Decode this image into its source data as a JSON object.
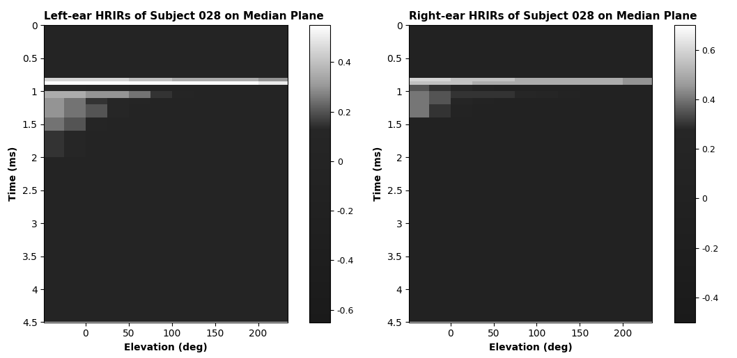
{
  "chart_data": [
    {
      "type": "heatmap",
      "title": "Left-ear HRIRs of Subject 028 on Median Plane",
      "x_label": "Elevation (deg)",
      "y_label": "Time (ms)",
      "xlim": [
        -48,
        234
      ],
      "ylim": [
        4.5,
        0
      ],
      "xticks": [
        0,
        50,
        100,
        150,
        200
      ],
      "yticks": [
        0,
        0.5,
        1,
        1.5,
        2,
        2.5,
        3,
        3.5,
        4,
        4.5
      ],
      "x_edges": [
        -48,
        -25,
        0,
        25,
        50,
        75,
        100,
        125,
        150,
        175,
        200,
        234
      ],
      "y_edges": [
        0,
        0.8,
        0.85,
        0.9,
        1.0,
        1.1,
        1.2,
        1.4,
        1.6,
        2.0,
        4.5
      ],
      "cells": [
        [
          0,
          0,
          0,
          0,
          0,
          0,
          0,
          0,
          0,
          0,
          0
        ],
        [
          0.45,
          0.45,
          0.45,
          0.45,
          0.4,
          0.4,
          0.35,
          0.35,
          0.35,
          0.35,
          0.3
        ],
        [
          0.55,
          0.55,
          0.55,
          0.55,
          0.55,
          0.55,
          0.55,
          0.55,
          0.55,
          0.55,
          0.5
        ],
        [
          0.1,
          0.1,
          0.05,
          0.05,
          0,
          0,
          0,
          0,
          0,
          0,
          0
        ],
        [
          0.35,
          0.35,
          0.3,
          0.3,
          0.25,
          0.15,
          0.05,
          0,
          0,
          0,
          0
        ],
        [
          0.3,
          0.25,
          0.15,
          0.1,
          0.05,
          0,
          0,
          0,
          0,
          0,
          0
        ],
        [
          0.3,
          0.25,
          0.2,
          0.1,
          0,
          0,
          0,
          0,
          0,
          0,
          0
        ],
        [
          0.25,
          0.2,
          0.05,
          0,
          0,
          0,
          0,
          0,
          0,
          0,
          0
        ],
        [
          0.15,
          0.1,
          0,
          0,
          0,
          0,
          0,
          0,
          0,
          0,
          0
        ],
        [
          0,
          0,
          0,
          0,
          0,
          0,
          0,
          0,
          0,
          0,
          0
        ]
      ],
      "colorbar_range": [
        -0.65,
        0.55
      ],
      "colorbar_ticks": [
        -0.6,
        -0.4,
        -0.2,
        0,
        0.2,
        0.4
      ]
    },
    {
      "type": "heatmap",
      "title": "Right-ear HRIRs of Subject 028 on Median Plane",
      "x_label": "Elevation (deg)",
      "y_label": "Time (ms)",
      "xlim": [
        -48,
        234
      ],
      "ylim": [
        4.5,
        0
      ],
      "xticks": [
        0,
        50,
        100,
        150,
        200
      ],
      "yticks": [
        0,
        0.5,
        1,
        1.5,
        2,
        2.5,
        3,
        3.5,
        4,
        4.5
      ],
      "x_edges": [
        -48,
        -25,
        0,
        25,
        50,
        75,
        100,
        125,
        150,
        175,
        200,
        234
      ],
      "y_edges": [
        0,
        0.8,
        0.85,
        0.9,
        1.0,
        1.1,
        1.2,
        1.4,
        1.6,
        2.0,
        4.5
      ],
      "cells": [
        [
          0,
          0,
          0,
          0,
          0,
          0,
          0,
          0,
          0,
          0,
          0
        ],
        [
          0.6,
          0.6,
          0.55,
          0.55,
          0.55,
          0.5,
          0.5,
          0.5,
          0.5,
          0.5,
          0.45
        ],
        [
          0.55,
          0.55,
          0.55,
          0.5,
          0.5,
          0.5,
          0.5,
          0.5,
          0.5,
          0.5,
          0.45
        ],
        [
          0.35,
          0.3,
          0.25,
          0.1,
          0.05,
          0,
          0,
          0,
          0,
          0,
          0
        ],
        [
          0.4,
          0.35,
          0.3,
          0.3,
          0.3,
          0.25,
          0.2,
          0.1,
          0.05,
          0.05,
          0
        ],
        [
          0.4,
          0.35,
          0.2,
          0.1,
          0,
          0,
          0,
          0,
          0,
          0,
          0
        ],
        [
          0.4,
          0.3,
          0.1,
          0,
          0,
          0,
          0,
          0,
          0,
          0,
          0
        ],
        [
          0,
          0,
          0,
          0,
          0,
          0,
          0,
          0,
          0,
          0,
          0
        ],
        [
          0,
          0,
          0,
          0,
          0,
          0,
          0,
          0,
          0,
          0,
          0
        ],
        [
          0,
          0,
          0,
          0,
          0,
          0,
          0,
          0,
          0,
          0,
          0
        ]
      ],
      "colorbar_range": [
        -0.5,
        0.7
      ],
      "colorbar_ticks": [
        -0.4,
        -0.2,
        0,
        0.2,
        0.4,
        0.6
      ]
    }
  ]
}
